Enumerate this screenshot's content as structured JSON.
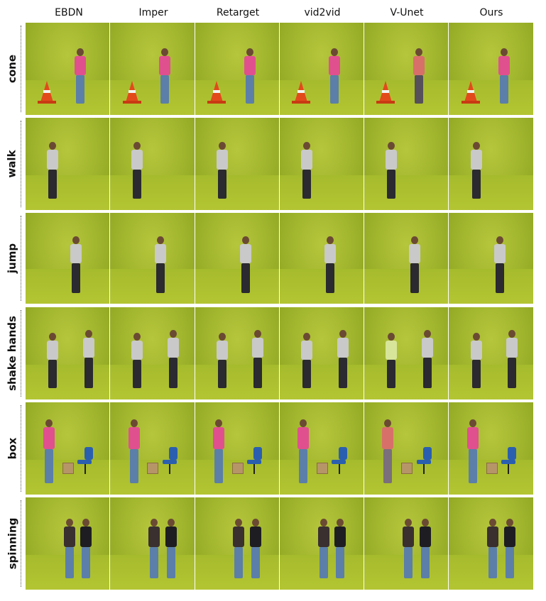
{
  "columns": [
    "EBDN",
    "Imper",
    "Retarget",
    "vid2vid",
    "V-Unet",
    "Ours"
  ],
  "rows": [
    {
      "label": "cone",
      "scene": "cone"
    },
    {
      "label": "walk",
      "scene": "single"
    },
    {
      "label": "jump",
      "scene": "single"
    },
    {
      "label": "shake hands",
      "scene": "pair"
    },
    {
      "label": "box",
      "scene": "box"
    },
    {
      "label": "spinning",
      "scene": "spin"
    }
  ],
  "colors": {
    "background_green": "#9fb42c",
    "pink_shirt": "#e0508f",
    "jeans": "#5b7fa8",
    "grey_shirt": "#c9c9c9",
    "dark_pants": "#2a2a30",
    "cone_orange": "#e24a1c",
    "chair_blue": "#2a5fb0"
  }
}
